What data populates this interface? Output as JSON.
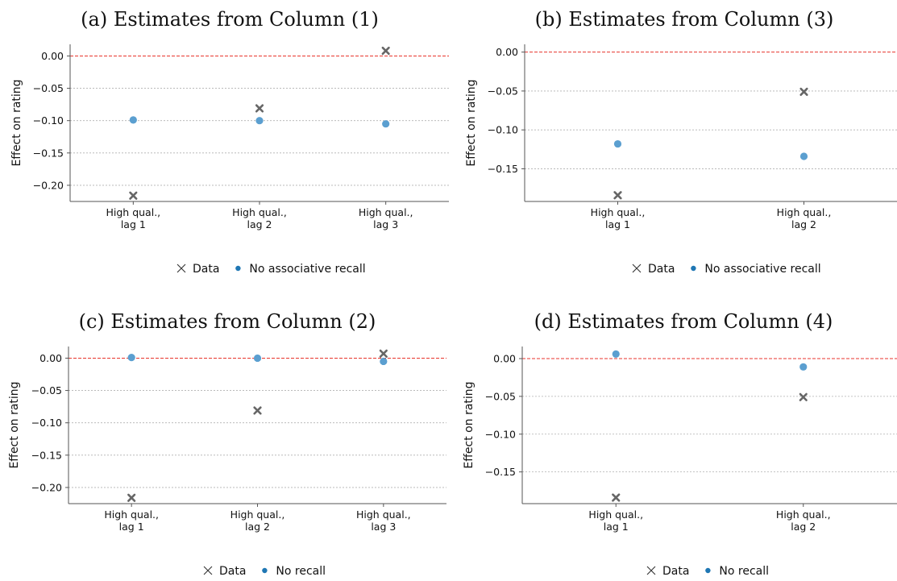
{
  "chart_data": [
    {
      "type": "scatter",
      "title": "(a) Estimates from Column (1)",
      "ylabel": "Effect on rating",
      "xlabel": "",
      "categories": [
        "High qual.,\nlag 1",
        "High qual.,\nlag 2",
        "High qual.,\nlag 3"
      ],
      "ylim": [
        -0.225,
        0.018
      ],
      "yticks": [
        0.0,
        -0.05,
        -0.1,
        -0.15,
        -0.2
      ],
      "ytick_labels": [
        "0.00",
        "−0.05",
        "−0.10",
        "−0.15",
        "−0.20"
      ],
      "reference_line": 0,
      "grid": true,
      "series": [
        {
          "name": "Data",
          "marker": "x",
          "values": [
            -0.216,
            -0.081,
            0.008
          ]
        },
        {
          "name": "No associative recall",
          "marker": "o",
          "values": [
            -0.099,
            -0.1,
            -0.105
          ]
        }
      ],
      "legend": {
        "placement": "bottom-center",
        "entries": [
          "Data",
          "No associative recall"
        ]
      }
    },
    {
      "type": "scatter",
      "title": "(b) Estimates from Column (3)",
      "ylabel": "Effect on rating",
      "xlabel": "",
      "categories": [
        "High qual.,\nlag 1",
        "High qual.,\nlag 2"
      ],
      "ylim": [
        -0.192,
        0.01
      ],
      "yticks": [
        0.0,
        -0.05,
        -0.1,
        -0.15
      ],
      "ytick_labels": [
        "0.00",
        "−0.05",
        "−0.10",
        "−0.15"
      ],
      "reference_line": 0,
      "grid": true,
      "series": [
        {
          "name": "Data",
          "marker": "x",
          "values": [
            -0.184,
            -0.051
          ]
        },
        {
          "name": "No associative recall",
          "marker": "o",
          "values": [
            -0.118,
            -0.134
          ]
        }
      ],
      "legend": {
        "placement": "bottom-center",
        "entries": [
          "Data",
          "No associative recall"
        ]
      }
    },
    {
      "type": "scatter",
      "title": "(c) Estimates from Column (2)",
      "ylabel": "Effect on rating",
      "xlabel": "",
      "categories": [
        "High qual.,\nlag 1",
        "High qual.,\nlag 2",
        "High qual.,\nlag 3"
      ],
      "ylim": [
        -0.225,
        0.018
      ],
      "yticks": [
        0.0,
        -0.05,
        -0.1,
        -0.15,
        -0.2
      ],
      "ytick_labels": [
        "0.00",
        "−0.05",
        "−0.10",
        "−0.15",
        "−0.20"
      ],
      "reference_line": 0,
      "grid": true,
      "series": [
        {
          "name": "Data",
          "marker": "x",
          "values": [
            -0.216,
            -0.081,
            0.007
          ]
        },
        {
          "name": "No recall",
          "marker": "o",
          "values": [
            0.001,
            0.0,
            -0.005
          ]
        }
      ],
      "legend": {
        "placement": "bottom-center",
        "entries": [
          "Data",
          "No recall"
        ]
      }
    },
    {
      "type": "scatter",
      "title": "(d) Estimates from Column (4)",
      "ylabel": "Effect on rating",
      "xlabel": "",
      "categories": [
        "High qual.,\nlag 1",
        "High qual.,\nlag 2"
      ],
      "ylim": [
        -0.192,
        0.016
      ],
      "yticks": [
        0.0,
        -0.05,
        -0.1,
        -0.15
      ],
      "ytick_labels": [
        "0.00",
        "−0.05",
        "−0.10",
        "−0.15"
      ],
      "reference_line": 0,
      "grid": true,
      "series": [
        {
          "name": "Data",
          "marker": "x",
          "values": [
            -0.184,
            -0.051
          ]
        },
        {
          "name": "No recall",
          "marker": "o",
          "values": [
            0.006,
            -0.011
          ]
        }
      ],
      "legend": {
        "placement": "bottom-center",
        "entries": [
          "Data",
          "No recall"
        ]
      }
    }
  ],
  "colors": {
    "data_marker": "#666666",
    "model_marker": "#5b9fd0",
    "legend_dot": "#1f77b4",
    "reference_line": "#e8352c",
    "grid": "#b0b0b0",
    "axis": "#555555"
  }
}
